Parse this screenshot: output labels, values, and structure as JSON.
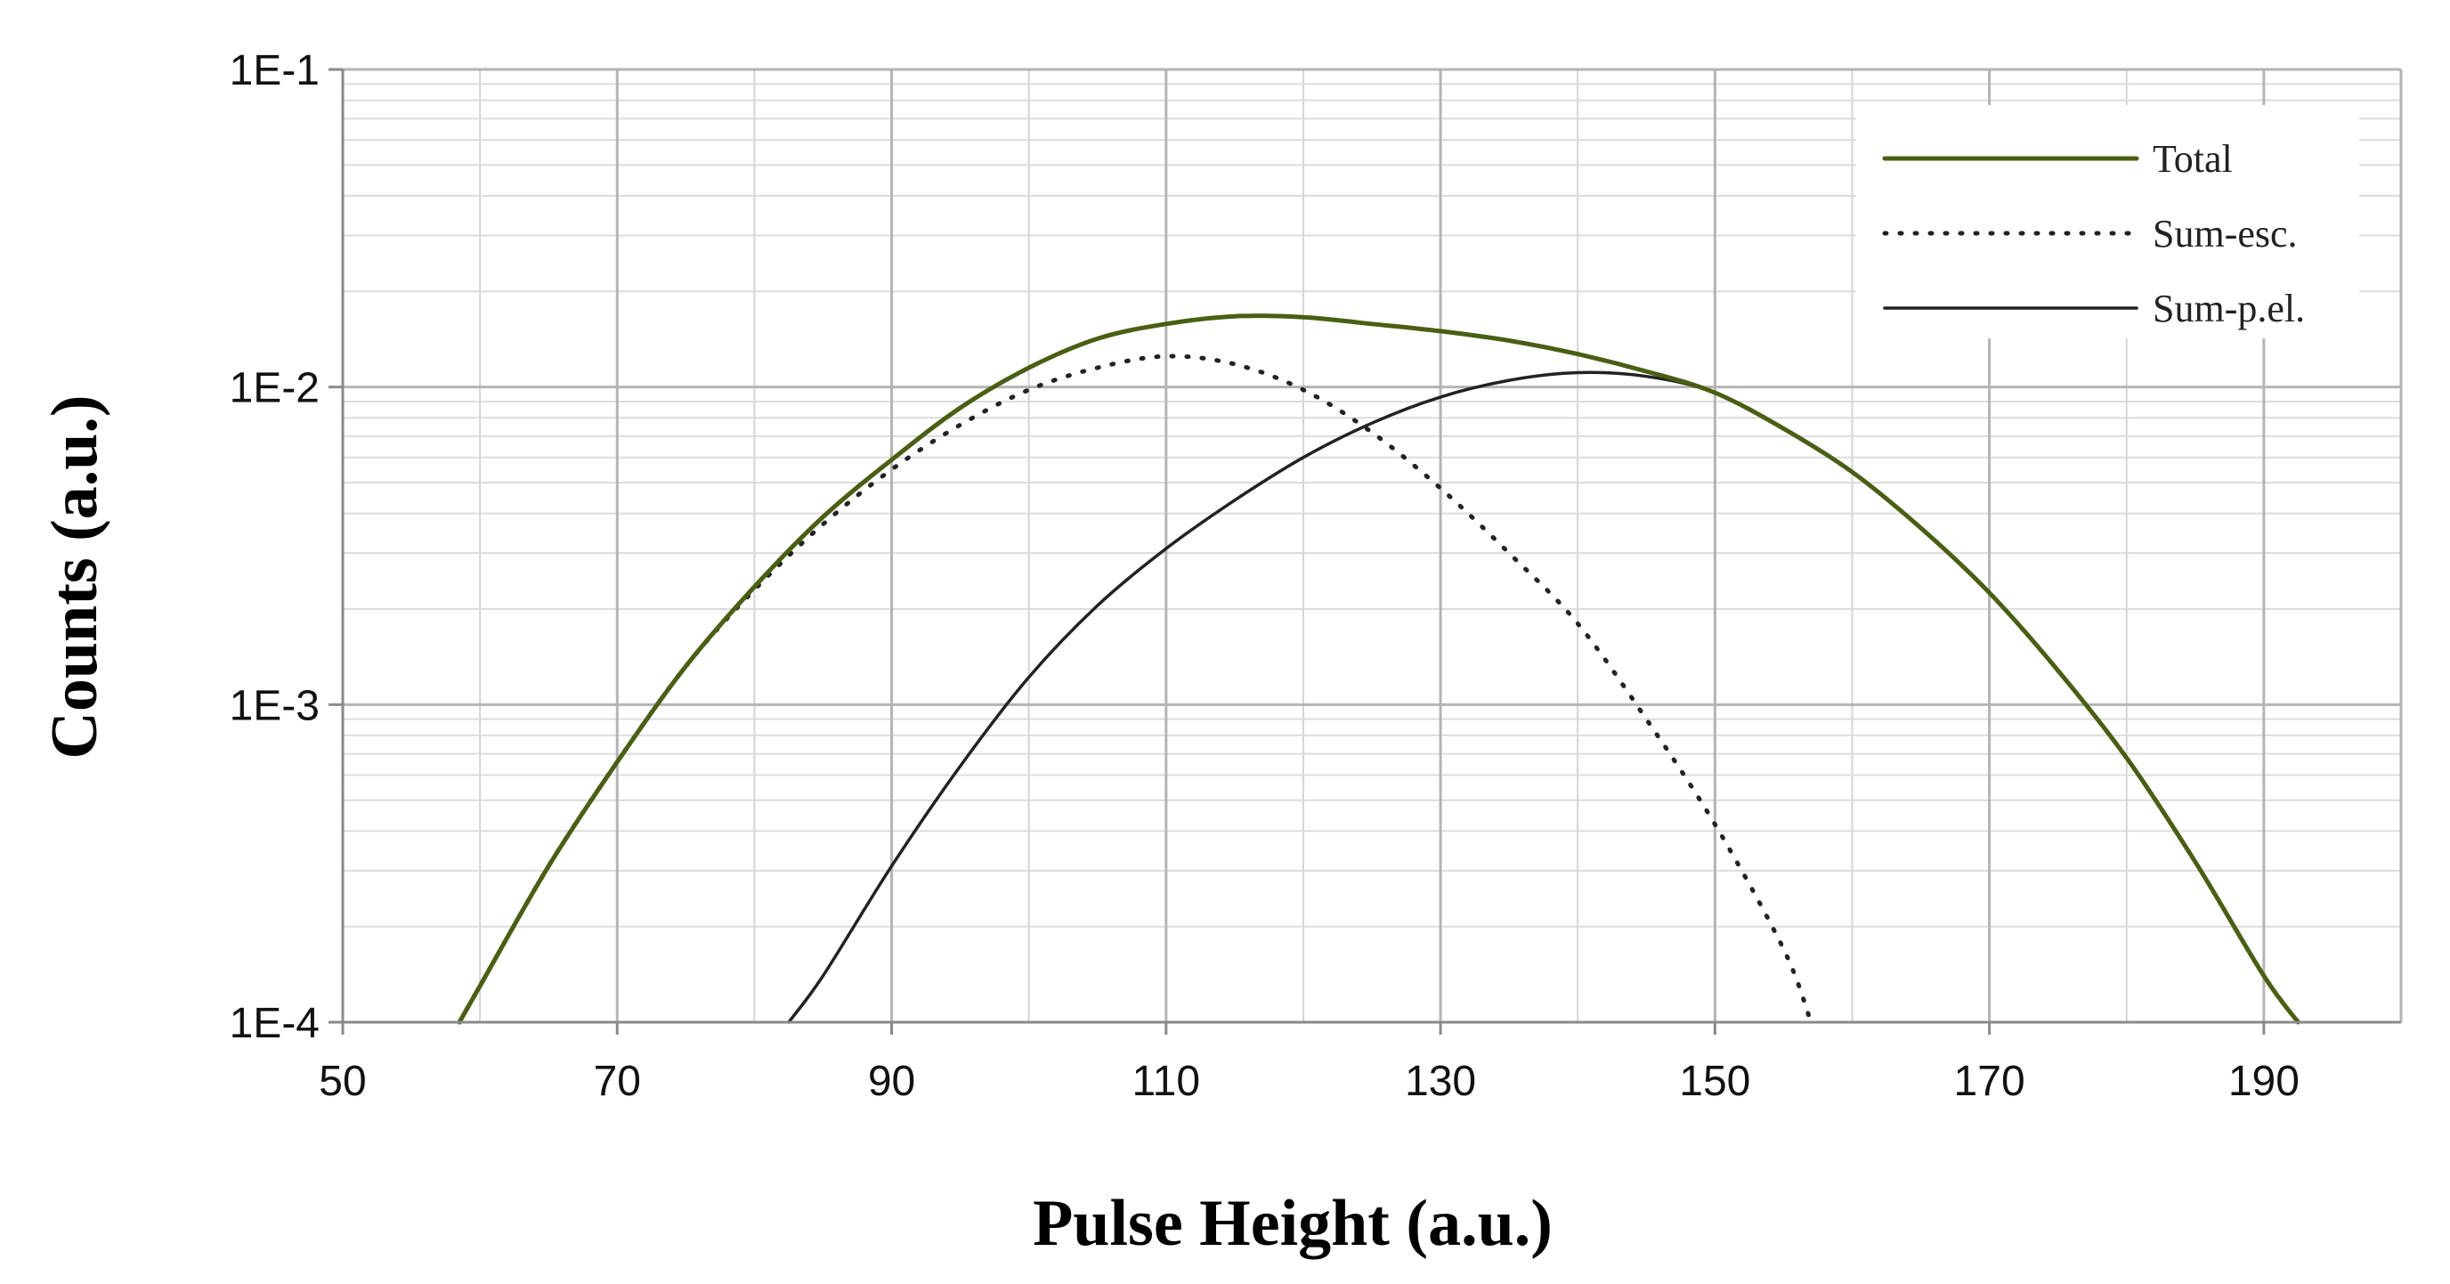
{
  "chart_data": {
    "type": "line",
    "title": "",
    "xlabel": "Pulse Height (a.u.)",
    "ylabel": "Counts (a.u.)",
    "x_ticks": [
      "50",
      "70",
      "90",
      "110",
      "130",
      "150",
      "170",
      "190"
    ],
    "y_ticks": [
      "1E-4",
      "1E-3",
      "1E-2",
      "1E-1"
    ],
    "xlim": [
      50,
      200
    ],
    "ylim": [
      0.0001,
      0.1
    ],
    "y_scale": "log",
    "grid": true,
    "legend_position": "top-right",
    "series": [
      {
        "name": "Total",
        "style": "solid-thick",
        "color": "#4a5e14",
        "x": [
          58.5,
          60,
          65,
          70,
          75,
          80,
          85,
          90,
          95,
          100,
          105,
          110,
          115,
          120,
          125,
          130,
          135,
          140,
          145,
          150,
          155,
          160,
          165,
          170,
          175,
          180,
          185,
          190,
          192.5
        ],
        "y": [
          0.0001,
          0.00013,
          0.00031,
          0.00066,
          0.00132,
          0.00235,
          0.0039,
          0.0059,
          0.0086,
          0.0115,
          0.0142,
          0.0158,
          0.0167,
          0.0166,
          0.0158,
          0.015,
          0.014,
          0.0127,
          0.0112,
          0.0096,
          0.0074,
          0.0054,
          0.0036,
          0.00225,
          0.00128,
          0.00068,
          0.00032,
          0.00014,
          0.0001
        ]
      },
      {
        "name": "Sum-esc.",
        "style": "dotted",
        "color": "#222222",
        "x": [
          58.5,
          60,
          65,
          70,
          75,
          80,
          85,
          90,
          95,
          100,
          105,
          110,
          115,
          120,
          125,
          130,
          135,
          140,
          145,
          150,
          155,
          157
        ],
        "y": [
          0.0001,
          0.00013,
          0.00031,
          0.00066,
          0.00132,
          0.0023,
          0.0037,
          0.0055,
          0.0076,
          0.0098,
          0.0115,
          0.0125,
          0.0118,
          0.0098,
          0.0072,
          0.0048,
          0.003,
          0.0018,
          0.0009,
          0.00042,
          0.00017,
          0.0001
        ]
      },
      {
        "name": "Sum-p.el.",
        "style": "solid-thin",
        "color": "#222222",
        "x": [
          82.5,
          85,
          90,
          95,
          100,
          105,
          110,
          115,
          120,
          125,
          130,
          135,
          140,
          145,
          150,
          155,
          160,
          165,
          170,
          175,
          180,
          185,
          190,
          192.5
        ],
        "y": [
          0.0001,
          0.00014,
          0.00031,
          0.00064,
          0.00122,
          0.00205,
          0.0031,
          0.0044,
          0.006,
          0.0077,
          0.0093,
          0.0105,
          0.0111,
          0.0108,
          0.0096,
          0.0074,
          0.0054,
          0.0036,
          0.00225,
          0.00128,
          0.00068,
          0.00032,
          0.00014,
          0.0001
        ]
      }
    ]
  }
}
